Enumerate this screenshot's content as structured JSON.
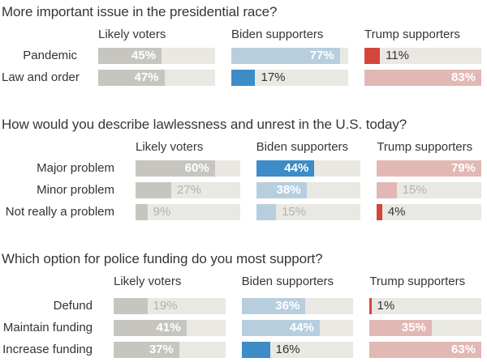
{
  "chart_data": {
    "type": "bar",
    "unit": "%",
    "layout": "three small-multiple bar columns per section, bars scaled to each section's max value, value labels on bars",
    "columns": [
      "Likely voters",
      "Biden supporters",
      "Trump supporters"
    ],
    "palette": {
      "gray": "#c6c5c0",
      "lightblue": "#b7cedf",
      "blue": "#3d8bc7",
      "pink": "#e2b8b4",
      "red": "#d5453c",
      "track": "#eae8e3",
      "label_dark": "#333333",
      "label_light": "#b3b2ac",
      "label_inside": "#ffffff",
      "heading_text": "#363636"
    },
    "sections": [
      {
        "title": "More important issue in the presidential race?",
        "scale_max": 83,
        "rows": [
          {
            "label": "Pandemic",
            "cells": [
              {
                "value": 45,
                "color": "gray"
              },
              {
                "value": 77,
                "color": "lightblue"
              },
              {
                "value": 11,
                "color": "red"
              }
            ]
          },
          {
            "label": "Law and order",
            "cells": [
              {
                "value": 47,
                "color": "gray"
              },
              {
                "value": 17,
                "color": "blue"
              },
              {
                "value": 83,
                "color": "pink"
              }
            ]
          }
        ]
      },
      {
        "title": "How would you describe lawlessness and unrest in the U.S. today?",
        "scale_max": 79,
        "rows": [
          {
            "label": "Major problem",
            "cells": [
              {
                "value": 60,
                "color": "gray"
              },
              {
                "value": 44,
                "color": "blue"
              },
              {
                "value": 79,
                "color": "pink"
              }
            ]
          },
          {
            "label": "Minor problem",
            "cells": [
              {
                "value": 27,
                "color": "gray"
              },
              {
                "value": 38,
                "color": "lightblue"
              },
              {
                "value": 15,
                "color": "pink"
              }
            ]
          },
          {
            "label": "Not really a problem",
            "cells": [
              {
                "value": 9,
                "color": "gray"
              },
              {
                "value": 15,
                "color": "lightblue"
              },
              {
                "value": 4,
                "color": "red"
              }
            ]
          }
        ]
      },
      {
        "title": "Which option for police funding do you most support?",
        "scale_max": 63,
        "rows": [
          {
            "label": "Defund",
            "cells": [
              {
                "value": 19,
                "color": "gray"
              },
              {
                "value": 36,
                "color": "lightblue"
              },
              {
                "value": 1,
                "color": "red"
              }
            ]
          },
          {
            "label": "Maintain funding",
            "cells": [
              {
                "value": 41,
                "color": "gray"
              },
              {
                "value": 44,
                "color": "lightblue"
              },
              {
                "value": 35,
                "color": "pink"
              }
            ]
          },
          {
            "label": "Increase funding",
            "cells": [
              {
                "value": 37,
                "color": "gray"
              },
              {
                "value": 16,
                "color": "blue"
              },
              {
                "value": 63,
                "color": "pink"
              }
            ]
          }
        ]
      }
    ]
  }
}
